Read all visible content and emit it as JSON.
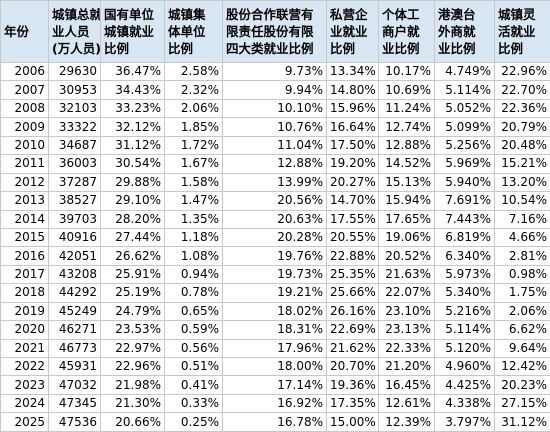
{
  "table": {
    "headers": [
      "年份",
      "城镇总就\n业人员\n(万人员)",
      "国有单位\n城镇就业\n比例",
      "城镇集\n体单位\n比例",
      "股份合作联营有\n限责任股份有限\n四大类就业比例",
      "私营企\n业就业\n比例",
      "个体工\n商户就\n业比例",
      "港澳台\n外商就\n业比例",
      "城镇灵\n活就业\n比例"
    ],
    "rows": [
      [
        "2006",
        "29630",
        "36.47%",
        "2.58%",
        "9.73%",
        "13.34%",
        "10.17%",
        "4.749%",
        "22.96%"
      ],
      [
        "2007",
        "30953",
        "34.43%",
        "2.32%",
        "9.94%",
        "14.80%",
        "10.69%",
        "5.114%",
        "22.70%"
      ],
      [
        "2008",
        "32103",
        "33.23%",
        "2.06%",
        "10.10%",
        "15.96%",
        "11.24%",
        "5.052%",
        "22.36%"
      ],
      [
        "2009",
        "33322",
        "32.12%",
        "1.85%",
        "10.76%",
        "16.64%",
        "12.74%",
        "5.099%",
        "20.79%"
      ],
      [
        "2010",
        "34687",
        "31.12%",
        "1.72%",
        "11.04%",
        "17.50%",
        "12.88%",
        "5.256%",
        "20.48%"
      ],
      [
        "2011",
        "36003",
        "30.54%",
        "1.67%",
        "12.88%",
        "19.20%",
        "14.52%",
        "5.969%",
        "15.21%"
      ],
      [
        "2012",
        "37287",
        "29.88%",
        "1.58%",
        "13.99%",
        "20.27%",
        "15.13%",
        "5.940%",
        "13.20%"
      ],
      [
        "2013",
        "38527",
        "29.10%",
        "1.47%",
        "20.56%",
        "14.70%",
        "15.94%",
        "7.691%",
        "10.54%"
      ],
      [
        "2014",
        "39703",
        "28.20%",
        "1.35%",
        "20.63%",
        "17.55%",
        "17.65%",
        "7.443%",
        "7.16%"
      ],
      [
        "2015",
        "40916",
        "27.44%",
        "1.18%",
        "20.28%",
        "20.55%",
        "19.06%",
        "6.819%",
        "4.66%"
      ],
      [
        "2016",
        "42051",
        "26.62%",
        "1.08%",
        "19.76%",
        "22.88%",
        "20.52%",
        "6.340%",
        "2.81%"
      ],
      [
        "2017",
        "43208",
        "25.91%",
        "0.94%",
        "19.73%",
        "25.35%",
        "21.63%",
        "5.973%",
        "0.98%"
      ],
      [
        "2018",
        "44292",
        "25.19%",
        "0.78%",
        "19.21%",
        "25.66%",
        "22.07%",
        "5.340%",
        "1.75%"
      ],
      [
        "2019",
        "45249",
        "24.79%",
        "0.65%",
        "18.02%",
        "26.16%",
        "23.10%",
        "5.216%",
        "2.06%"
      ],
      [
        "2020",
        "46271",
        "23.53%",
        "0.59%",
        "18.31%",
        "22.69%",
        "23.13%",
        "5.114%",
        "6.62%"
      ],
      [
        "2021",
        "46773",
        "22.97%",
        "0.56%",
        "17.96%",
        "21.62%",
        "22.33%",
        "5.120%",
        "9.64%"
      ],
      [
        "2022",
        "45931",
        "22.96%",
        "0.51%",
        "18.00%",
        "20.70%",
        "21.20%",
        "4.960%",
        "12.42%"
      ],
      [
        "2023",
        "47032",
        "21.98%",
        "0.41%",
        "17.14%",
        "19.36%",
        "16.45%",
        "4.425%",
        "20.23%"
      ],
      [
        "2024",
        "47345",
        "21.30%",
        "0.33%",
        "16.92%",
        "17.35%",
        "12.61%",
        "4.338%",
        "27.15%"
      ],
      [
        "2025",
        "47536",
        "20.66%",
        "0.25%",
        "16.78%",
        "15.00%",
        "12.39%",
        "3.797%",
        "31.12%"
      ]
    ]
  }
}
